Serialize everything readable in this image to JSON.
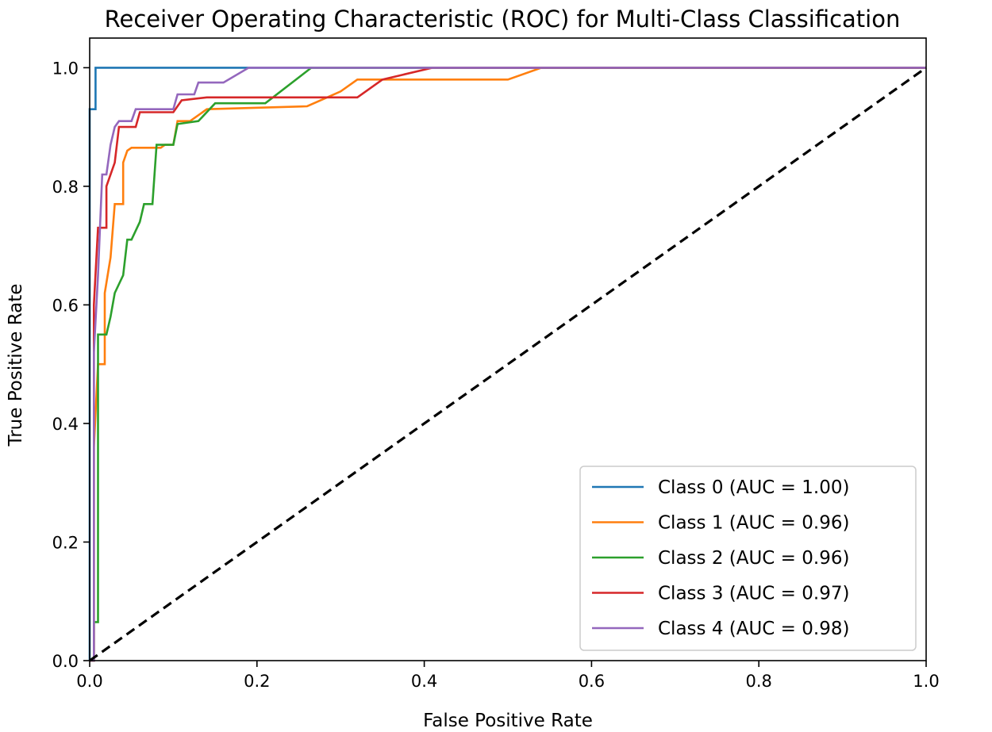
{
  "chart_data": {
    "type": "line",
    "title": "Receiver Operating Characteristic (ROC) for Multi-Class Classification",
    "xlabel": "False Positive Rate",
    "ylabel": "True Positive Rate",
    "xlim": [
      0.0,
      1.0
    ],
    "ylim": [
      0.0,
      1.05
    ],
    "xticks": [
      "0.0",
      "0.2",
      "0.4",
      "0.6",
      "0.8",
      "1.0"
    ],
    "yticks": [
      "0.0",
      "0.2",
      "0.4",
      "0.6",
      "0.8",
      "1.0"
    ],
    "grid": false,
    "legend_position": "lower-right",
    "series": [
      {
        "name": "Class 0 (AUC = 1.00)",
        "color": "#1f77b4",
        "points": [
          [
            0.0,
            0.0
          ],
          [
            0.0,
            0.93
          ],
          [
            0.007,
            0.93
          ],
          [
            0.007,
            1.0
          ],
          [
            1.0,
            1.0
          ]
        ]
      },
      {
        "name": "Class 1 (AUC = 0.96)",
        "color": "#ff7f0e",
        "points": [
          [
            0.0,
            0.0
          ],
          [
            0.005,
            0.0
          ],
          [
            0.005,
            0.36
          ],
          [
            0.01,
            0.5
          ],
          [
            0.018,
            0.5
          ],
          [
            0.018,
            0.62
          ],
          [
            0.025,
            0.68
          ],
          [
            0.03,
            0.77
          ],
          [
            0.04,
            0.77
          ],
          [
            0.04,
            0.84
          ],
          [
            0.045,
            0.86
          ],
          [
            0.05,
            0.865
          ],
          [
            0.085,
            0.865
          ],
          [
            0.09,
            0.87
          ],
          [
            0.1,
            0.87
          ],
          [
            0.105,
            0.91
          ],
          [
            0.12,
            0.91
          ],
          [
            0.14,
            0.93
          ],
          [
            0.26,
            0.935
          ],
          [
            0.3,
            0.96
          ],
          [
            0.32,
            0.98
          ],
          [
            0.5,
            0.98
          ],
          [
            0.54,
            1.0
          ],
          [
            1.0,
            1.0
          ]
        ]
      },
      {
        "name": "Class 2 (AUC = 0.96)",
        "color": "#2ca02c",
        "points": [
          [
            0.0,
            0.0
          ],
          [
            0.005,
            0.0
          ],
          [
            0.005,
            0.065
          ],
          [
            0.01,
            0.065
          ],
          [
            0.01,
            0.55
          ],
          [
            0.02,
            0.55
          ],
          [
            0.025,
            0.58
          ],
          [
            0.03,
            0.62
          ],
          [
            0.04,
            0.65
          ],
          [
            0.045,
            0.71
          ],
          [
            0.05,
            0.71
          ],
          [
            0.06,
            0.74
          ],
          [
            0.065,
            0.77
          ],
          [
            0.075,
            0.77
          ],
          [
            0.08,
            0.87
          ],
          [
            0.09,
            0.87
          ],
          [
            0.1,
            0.87
          ],
          [
            0.105,
            0.905
          ],
          [
            0.13,
            0.91
          ],
          [
            0.15,
            0.94
          ],
          [
            0.21,
            0.94
          ],
          [
            0.265,
            1.0
          ],
          [
            1.0,
            1.0
          ]
        ]
      },
      {
        "name": "Class 3 (AUC = 0.97)",
        "color": "#d62728",
        "points": [
          [
            0.0,
            0.0
          ],
          [
            0.005,
            0.0
          ],
          [
            0.005,
            0.6
          ],
          [
            0.01,
            0.73
          ],
          [
            0.02,
            0.73
          ],
          [
            0.02,
            0.8
          ],
          [
            0.03,
            0.84
          ],
          [
            0.035,
            0.9
          ],
          [
            0.055,
            0.9
          ],
          [
            0.06,
            0.925
          ],
          [
            0.1,
            0.925
          ],
          [
            0.11,
            0.945
          ],
          [
            0.14,
            0.95
          ],
          [
            0.32,
            0.95
          ],
          [
            0.35,
            0.98
          ],
          [
            0.41,
            1.0
          ],
          [
            1.0,
            1.0
          ]
        ]
      },
      {
        "name": "Class 4 (AUC = 0.98)",
        "color": "#9467bd",
        "points": [
          [
            0.0,
            0.0
          ],
          [
            0.005,
            0.0
          ],
          [
            0.005,
            0.52
          ],
          [
            0.01,
            0.65
          ],
          [
            0.015,
            0.82
          ],
          [
            0.02,
            0.82
          ],
          [
            0.025,
            0.87
          ],
          [
            0.03,
            0.9
          ],
          [
            0.035,
            0.91
          ],
          [
            0.05,
            0.91
          ],
          [
            0.055,
            0.93
          ],
          [
            0.1,
            0.93
          ],
          [
            0.105,
            0.955
          ],
          [
            0.125,
            0.955
          ],
          [
            0.13,
            0.975
          ],
          [
            0.16,
            0.975
          ],
          [
            0.19,
            1.0
          ],
          [
            1.0,
            1.0
          ]
        ]
      }
    ],
    "reference_line": {
      "color": "#000000",
      "style": "dashed",
      "points": [
        [
          0.0,
          0.0
        ],
        [
          1.0,
          1.0
        ]
      ]
    }
  }
}
